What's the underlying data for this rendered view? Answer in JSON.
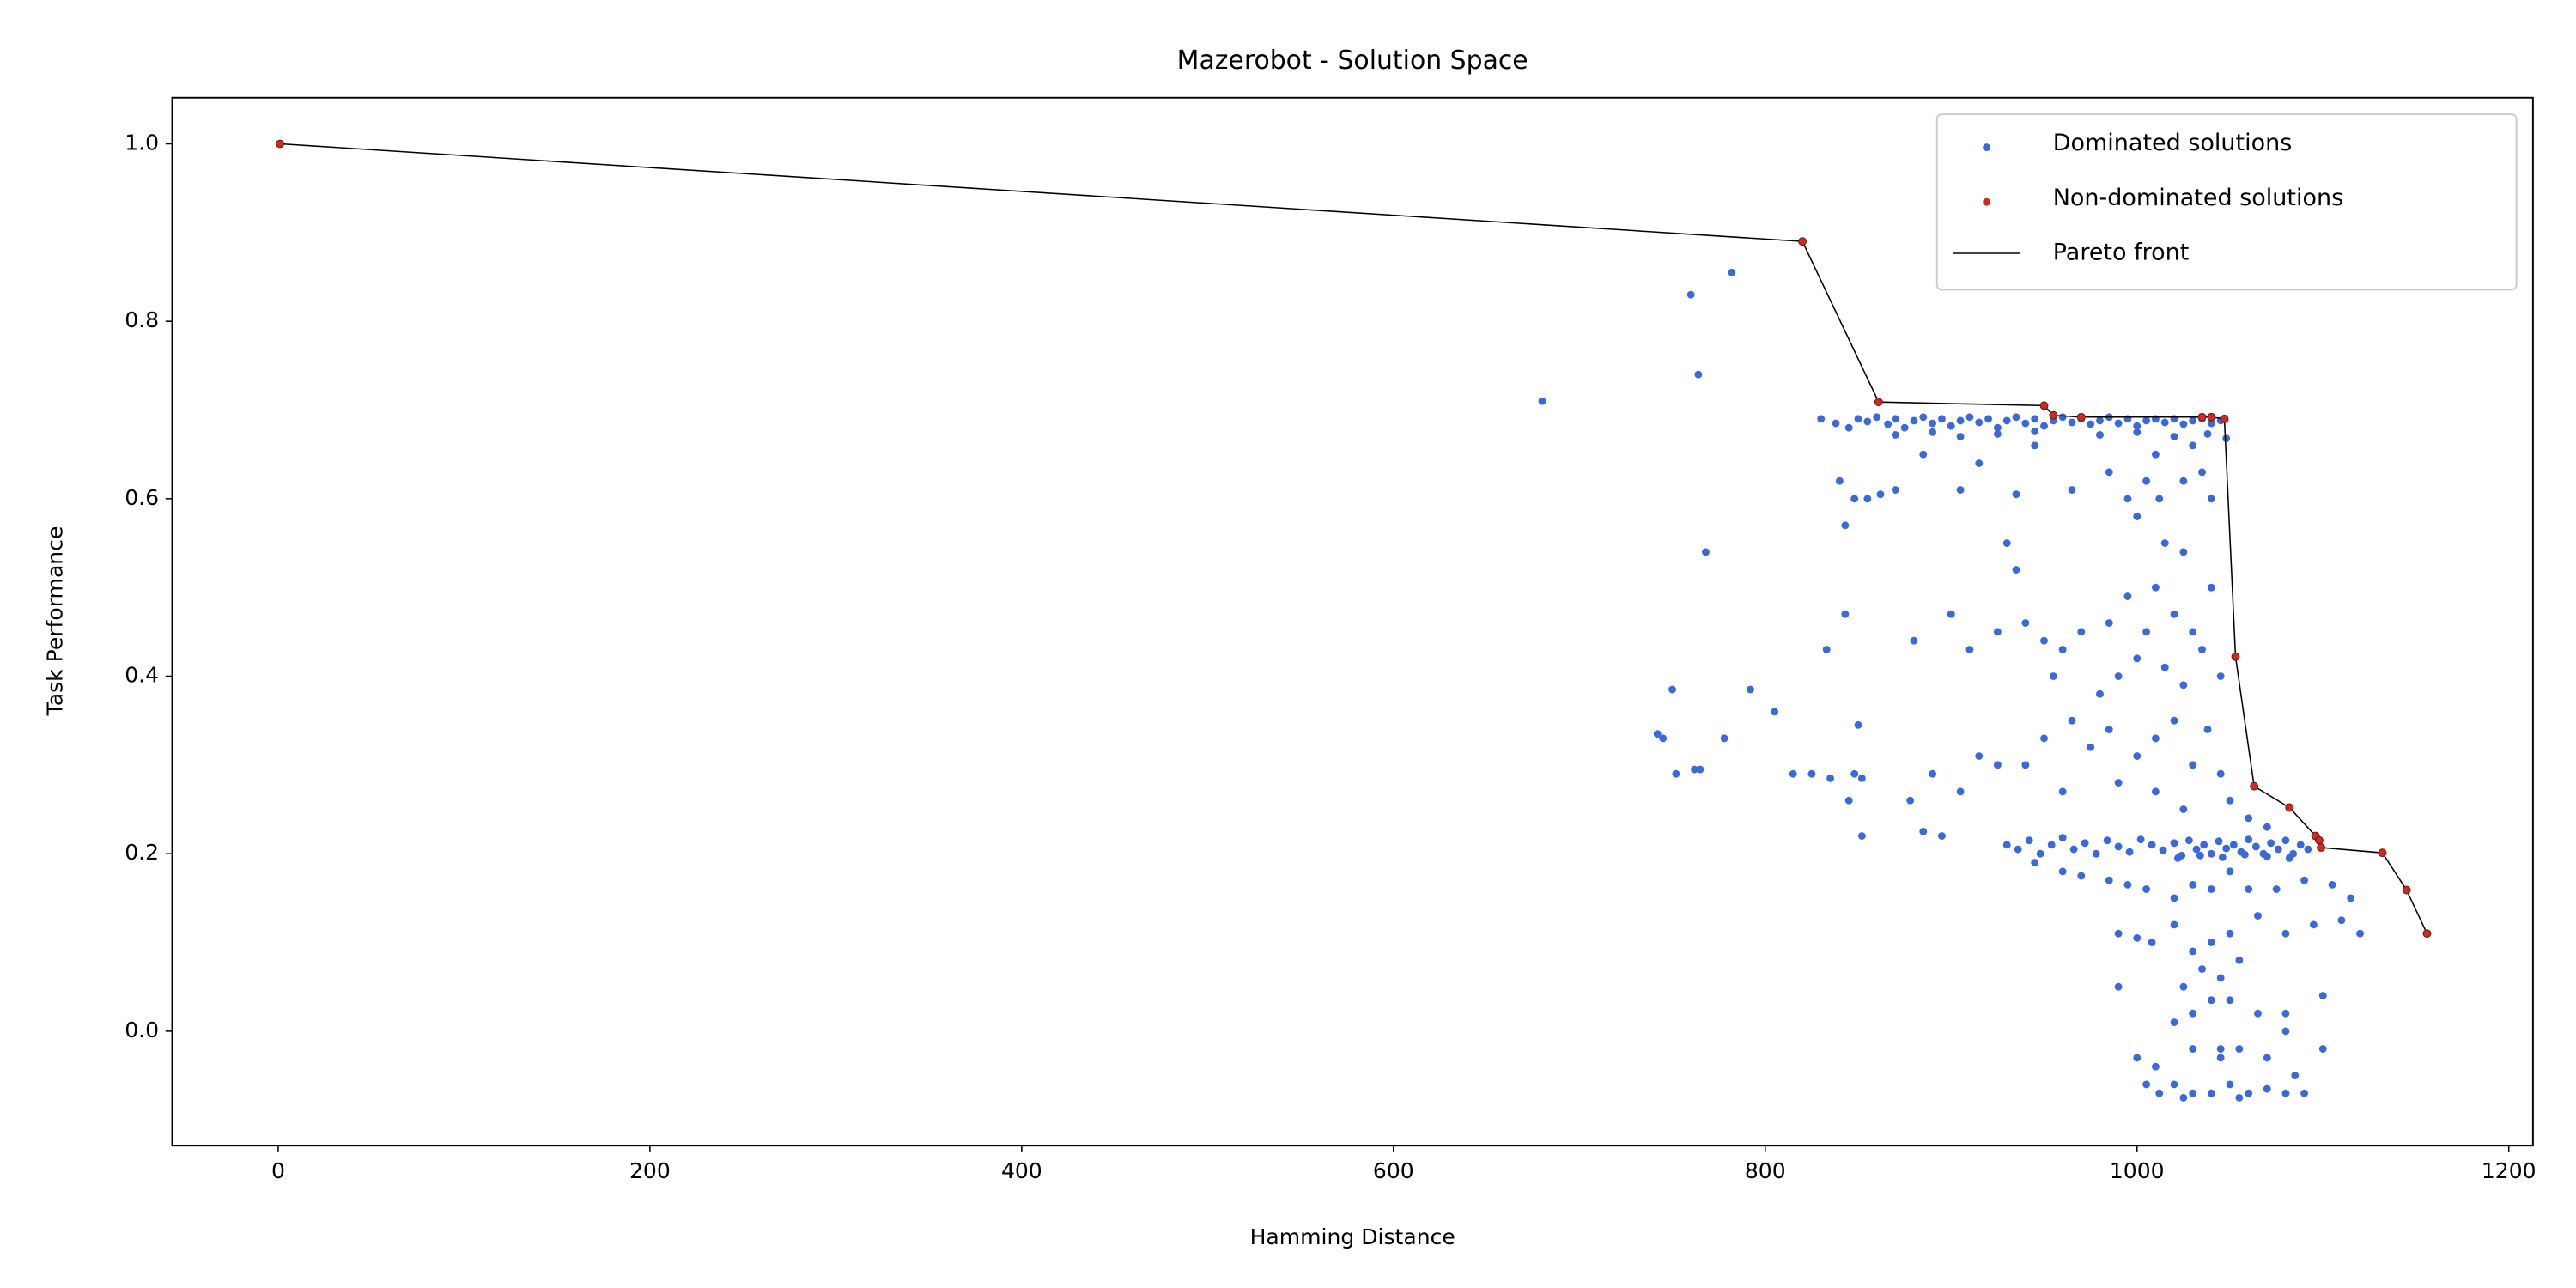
{
  "chart_data": {
    "type": "scatter",
    "title": "Mazerobot - Solution Space",
    "x_label": "Hamming Distance",
    "y_label": "Task Performance",
    "xlim": [
      -57,
      1213
    ],
    "ylim": [
      -0.129,
      1.052
    ],
    "xticks": [
      0,
      200,
      400,
      600,
      800,
      1000,
      1200
    ],
    "yticks": [
      {
        "value": 0,
        "label": "0.0"
      },
      0.2,
      0.4,
      0.6,
      0.8,
      {
        "value": 1,
        "label": "1.0"
      }
    ],
    "grid": false,
    "legend": "upper right",
    "series": [
      {
        "name": "Dominated solutions",
        "color": "#3a6ad9",
        "kind": "points",
        "x": [
          680,
          760,
          782,
          764,
          768,
          745,
          742,
          750,
          752,
          762,
          765,
          778,
          792,
          805,
          815,
          825,
          835,
          845,
          848,
          852,
          852,
          850,
          833,
          843,
          843,
          830,
          838,
          845,
          850,
          855,
          860,
          866,
          870,
          875,
          880,
          885,
          890,
          895,
          900,
          905,
          910,
          915,
          920,
          925,
          930,
          935,
          940,
          945,
          950,
          955,
          960,
          965,
          970,
          975,
          980,
          985,
          990,
          995,
          1000,
          1005,
          1010,
          1015,
          1020,
          1025,
          1030,
          1035,
          1040,
          1045,
          870,
          890,
          905,
          925,
          945,
          980,
          1000,
          1020,
          1038,
          1048,
          840,
          848,
          855,
          862,
          870,
          885,
          905,
          915,
          935,
          945,
          965,
          985,
          995,
          1005,
          1010,
          1025,
          1030,
          1040,
          1035,
          1012,
          1000,
          1015,
          1025,
          1010,
          995,
          1020,
          1040,
          1030,
          1005,
          985,
          970,
          960,
          950,
          940,
          925,
          910,
          900,
          880,
          930,
          935,
          955,
          980,
          990,
          1000,
          1015,
          1025,
          1035,
          1045,
          965,
          985,
          1010,
          1020,
          1038,
          1030,
          1045,
          1000,
          975,
          950,
          940,
          925,
          915,
          905,
          890,
          878,
          895,
          885,
          960,
          990,
          1010,
          1050,
          1060,
          1070,
          1025,
          930,
          936,
          942,
          948,
          954,
          960,
          966,
          972,
          978,
          984,
          990,
          996,
          1002,
          1008,
          1014,
          1020,
          1024,
          1028,
          1032,
          1036,
          1040,
          1044,
          1048,
          1052,
          1056,
          1060,
          1064,
          1068,
          1072,
          1076,
          1080,
          1084,
          1088,
          1092,
          1022,
          1034,
          1046,
          1058,
          1070,
          1082,
          1050,
          1040,
          1030,
          1020,
          1005,
          995,
          985,
          970,
          960,
          945,
          1060,
          1075,
          1090,
          1105,
          1115,
          1120,
          1110,
          1095,
          1080,
          1065,
          1050,
          1040,
          1030,
          1020,
          1008,
          1000,
          990,
          1035,
          1045,
          1055,
          1025,
          1040,
          1050,
          1030,
          1065,
          1080,
          1100,
          990,
          1020,
          1030,
          1045,
          1055,
          1000,
          1010,
          1045,
          1070,
          1080,
          1100,
          1020,
          1030,
          1040,
          1050,
          1060,
          1070,
          1080,
          1090,
          1005,
          1012,
          1025,
          1055,
          1085
        ],
        "values": [
          0.71,
          0.83,
          0.855,
          0.74,
          0.54,
          0.33,
          0.335,
          0.385,
          0.29,
          0.295,
          0.295,
          0.33,
          0.385,
          0.36,
          0.29,
          0.29,
          0.285,
          0.26,
          0.29,
          0.285,
          0.22,
          0.345,
          0.43,
          0.47,
          0.57,
          0.69,
          0.685,
          0.68,
          0.69,
          0.687,
          0.692,
          0.684,
          0.69,
          0.68,
          0.688,
          0.692,
          0.685,
          0.69,
          0.682,
          0.688,
          0.692,
          0.686,
          0.69,
          0.68,
          0.688,
          0.692,
          0.685,
          0.69,
          0.682,
          0.688,
          0.692,
          0.686,
          0.69,
          0.684,
          0.688,
          0.692,
          0.685,
          0.69,
          0.682,
          0.688,
          0.69,
          0.686,
          0.69,
          0.684,
          0.688,
          0.69,
          0.685,
          0.688,
          0.672,
          0.675,
          0.67,
          0.673,
          0.676,
          0.672,
          0.675,
          0.67,
          0.673,
          0.668,
          0.62,
          0.6,
          0.6,
          0.605,
          0.61,
          0.65,
          0.61,
          0.64,
          0.605,
          0.66,
          0.61,
          0.63,
          0.6,
          0.62,
          0.65,
          0.62,
          0.66,
          0.6,
          0.63,
          0.6,
          0.58,
          0.55,
          0.54,
          0.5,
          0.49,
          0.47,
          0.5,
          0.45,
          0.45,
          0.46,
          0.45,
          0.43,
          0.44,
          0.46,
          0.45,
          0.43,
          0.47,
          0.44,
          0.55,
          0.52,
          0.4,
          0.38,
          0.4,
          0.42,
          0.41,
          0.39,
          0.43,
          0.4,
          0.35,
          0.34,
          0.33,
          0.35,
          0.34,
          0.3,
          0.29,
          0.31,
          0.32,
          0.33,
          0.3,
          0.3,
          0.31,
          0.27,
          0.29,
          0.26,
          0.22,
          0.225,
          0.27,
          0.28,
          0.27,
          0.26,
          0.24,
          0.23,
          0.25,
          0.21,
          0.205,
          0.215,
          0.2,
          0.21,
          0.218,
          0.205,
          0.212,
          0.2,
          0.215,
          0.208,
          0.202,
          0.216,
          0.21,
          0.204,
          0.212,
          0.198,
          0.215,
          0.205,
          0.21,
          0.2,
          0.214,
          0.206,
          0.21,
          0.202,
          0.216,
          0.208,
          0.2,
          0.212,
          0.205,
          0.215,
          0.2,
          0.21,
          0.205,
          0.195,
          0.198,
          0.196,
          0.199,
          0.197,
          0.195,
          0.18,
          0.16,
          0.165,
          0.15,
          0.16,
          0.165,
          0.17,
          0.175,
          0.18,
          0.19,
          0.16,
          0.16,
          0.17,
          0.165,
          0.15,
          0.11,
          0.125,
          0.12,
          0.11,
          0.13,
          0.11,
          0.1,
          0.09,
          0.12,
          0.1,
          0.105,
          0.11,
          0.07,
          0.06,
          0.08,
          0.05,
          0.035,
          0.035,
          0.02,
          0.02,
          0.02,
          0.04,
          0.05,
          0.01,
          -0.02,
          -0.02,
          -0.02,
          -0.03,
          -0.04,
          -0.03,
          -0.03,
          0,
          -0.02,
          -0.06,
          -0.07,
          -0.07,
          -0.06,
          -0.07,
          -0.065,
          -0.07,
          -0.07,
          -0.06,
          -0.07,
          -0.075,
          -0.075,
          -0.05
        ]
      },
      {
        "name": "Non-dominated solutions",
        "color": "#cc2b1d",
        "kind": "points",
        "x": [
          1,
          820,
          861,
          950,
          955,
          970,
          1035,
          1040,
          1047,
          1053,
          1063,
          1082,
          1096,
          1098,
          1099,
          1132,
          1145,
          1156
        ],
        "values": [
          1.0,
          0.89,
          0.709,
          0.705,
          0.694,
          0.692,
          0.692,
          0.692,
          0.69,
          0.422,
          0.276,
          0.252,
          0.22,
          0.215,
          0.207,
          0.201,
          0.159,
          0.11
        ]
      },
      {
        "name": "Pareto front",
        "color": "#000000",
        "kind": "line",
        "x": [
          1,
          820,
          861,
          950,
          955,
          970,
          1035,
          1040,
          1047,
          1053,
          1063,
          1082,
          1096,
          1098,
          1099,
          1132,
          1145,
          1156
        ],
        "values": [
          1.0,
          0.89,
          0.709,
          0.705,
          0.694,
          0.692,
          0.692,
          0.692,
          0.69,
          0.422,
          0.276,
          0.252,
          0.22,
          0.215,
          0.207,
          0.201,
          0.159,
          0.11
        ]
      }
    ]
  }
}
